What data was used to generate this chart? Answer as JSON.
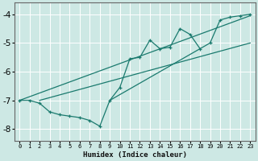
{
  "xlabel": "Humidex (Indice chaleur)",
  "bg_color": "#cde8e4",
  "grid_color": "#ffffff",
  "line_color": "#1a7a6e",
  "xlim": [
    -0.5,
    23.5
  ],
  "ylim": [
    -8.4,
    -3.6
  ],
  "xticks": [
    0,
    1,
    2,
    3,
    4,
    5,
    6,
    7,
    8,
    9,
    10,
    11,
    12,
    13,
    14,
    15,
    16,
    17,
    18,
    19,
    20,
    21,
    22,
    23
  ],
  "yticks": [
    -8,
    -7,
    -6,
    -5,
    -4
  ],
  "main_x": [
    0,
    1,
    2,
    3,
    4,
    5,
    6,
    7,
    8,
    9,
    10,
    11,
    12,
    13,
    14,
    15,
    16,
    17,
    18,
    19,
    20,
    21,
    22,
    23
  ],
  "main_y": [
    -7.0,
    -7.0,
    -7.1,
    -7.4,
    -7.5,
    -7.55,
    -7.6,
    -7.7,
    -7.9,
    -7.0,
    -6.55,
    -5.55,
    -5.5,
    -4.9,
    -5.2,
    -5.15,
    -4.5,
    -4.7,
    -5.2,
    -5.0,
    -4.2,
    -4.1,
    -4.05,
    -4.0
  ],
  "line1_x": [
    0,
    23
  ],
  "line1_y": [
    -7.0,
    -4.05
  ],
  "line2_x": [
    2,
    23
  ],
  "line2_y": [
    -7.0,
    -5.0
  ],
  "line3_x": [
    9,
    18
  ],
  "line3_y": [
    -7.0,
    -5.2
  ]
}
